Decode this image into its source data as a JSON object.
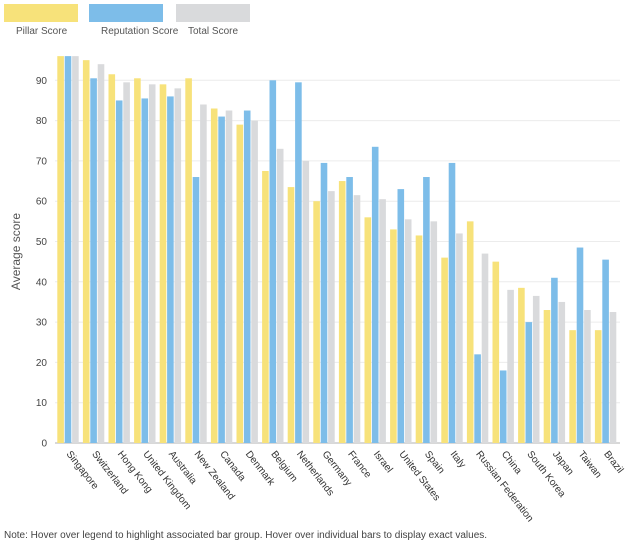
{
  "chart_data": {
    "type": "bar",
    "ylabel": "Average score",
    "ylim": [
      0,
      100
    ],
    "yticks": [
      0,
      10,
      20,
      30,
      40,
      50,
      60,
      70,
      80,
      90
    ],
    "grid": true,
    "legend_position": "top-left",
    "categories": [
      "Singapore",
      "Switzerland",
      "Hong Kong",
      "United Kingdom",
      "Australia",
      "New Zealand",
      "Canada",
      "Denmark",
      "Belgium",
      "Netherlands",
      "Germany",
      "France",
      "Israel",
      "United States",
      "Spain",
      "Italy",
      "Russian Federation",
      "China",
      "South Korea",
      "Japan",
      "Taiwan",
      "Brazil"
    ],
    "series": [
      {
        "name": "Pillar Score",
        "color": "#f7e27a",
        "values": [
          96,
          95,
          91.5,
          90.5,
          89,
          90.5,
          83,
          79,
          67.5,
          63.5,
          60,
          65,
          56,
          53,
          51.5,
          46,
          55,
          45,
          38.5,
          33,
          28,
          28
        ]
      },
      {
        "name": "Reputation Score",
        "color": "#7dbde9",
        "values": [
          96,
          90.5,
          85,
          85.5,
          86,
          66,
          81,
          82.5,
          90,
          89.5,
          69.5,
          66,
          73.5,
          63,
          66,
          69.5,
          22,
          18,
          30,
          41,
          48.5,
          45.5
        ]
      },
      {
        "name": "Total Score",
        "color": "#d9dadc",
        "values": [
          96,
          94,
          89.5,
          89,
          88,
          84,
          82.5,
          80,
          73,
          70,
          62.5,
          61.5,
          60.5,
          55.5,
          55,
          52,
          47,
          38,
          36.5,
          35,
          33,
          32.5
        ]
      }
    ]
  },
  "note": "Note: Hover over legend to highlight associated bar group. Hover over individual bars to display exact values."
}
